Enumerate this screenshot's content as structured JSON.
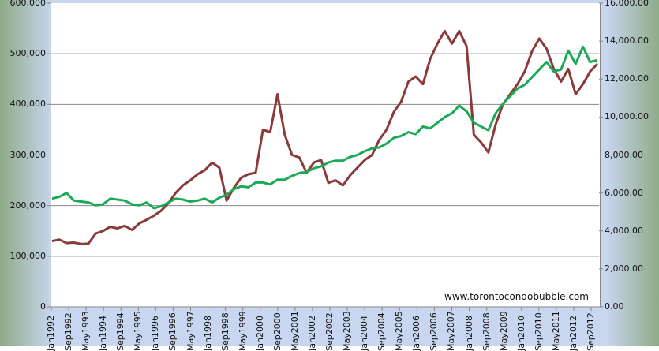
{
  "chart_data": {
    "type": "line",
    "title": "",
    "xlabel": "",
    "ylabel_left": "",
    "ylabel_right": "",
    "left_axis": {
      "min": 0,
      "max": 600000,
      "ticks": [
        "0",
        "100,000",
        "200,000",
        "300,000",
        "400,000",
        "500,000",
        "600,000"
      ]
    },
    "right_axis": {
      "min": 0,
      "max": 16000,
      "ticks": [
        "0.00",
        "2,000.00",
        "4,000.00",
        "6,000.00",
        "8,000.00",
        "10,000.00",
        "12,000.00",
        "14,000.00",
        "16,000.00"
      ]
    },
    "x_tick_labels": [
      "Jan1992",
      "Sep1992",
      "May1993",
      "Jan1994",
      "Sep1994",
      "May1995",
      "Jan1996",
      "Sep1996",
      "May1997",
      "Jan1998",
      "Sep1998",
      "May1999",
      "Jan2000",
      "Sep2000",
      "May2001",
      "Jan2002",
      "Sep2002",
      "May2003",
      "Jan2004",
      "Sep2004",
      "May2005",
      "Jan2006",
      "Sep2006",
      "May2007",
      "Jan2008",
      "Sep2008",
      "May2009",
      "Jan2010",
      "Sep2010",
      "May2011",
      "Jan2012",
      "Sep2012"
    ],
    "x_sample_interval_months": 4,
    "x_start": "Jan1992",
    "series": [
      {
        "name": "Red series (left axis)",
        "color": "#8b3a3a",
        "axis": "left",
        "values": [
          130000,
          133000,
          126000,
          127000,
          124000,
          125000,
          145000,
          150000,
          158000,
          155000,
          160000,
          152000,
          165000,
          172000,
          180000,
          190000,
          205000,
          225000,
          240000,
          250000,
          262000,
          270000,
          285000,
          275000,
          210000,
          235000,
          255000,
          262000,
          265000,
          350000,
          345000,
          420000,
          340000,
          300000,
          295000,
          265000,
          285000,
          290000,
          245000,
          250000,
          240000,
          260000,
          275000,
          290000,
          300000,
          330000,
          350000,
          385000,
          405000,
          445000,
          455000,
          440000,
          490000,
          520000,
          545000,
          520000,
          545000,
          515000,
          340000,
          325000,
          305000,
          360000,
          400000,
          420000,
          440000,
          465000,
          505000,
          530000,
          510000,
          470000,
          445000,
          470000,
          420000,
          440000,
          465000,
          480000
        ]
      },
      {
        "name": "Green series (right axis)",
        "color": "#1aaa55",
        "axis": "right",
        "values": [
          5700,
          5800,
          6000,
          5600,
          5550,
          5500,
          5350,
          5400,
          5700,
          5650,
          5600,
          5400,
          5350,
          5500,
          5200,
          5300,
          5500,
          5700,
          5650,
          5550,
          5600,
          5700,
          5500,
          5750,
          5900,
          6200,
          6350,
          6300,
          6550,
          6550,
          6450,
          6700,
          6700,
          6900,
          7050,
          7100,
          7300,
          7400,
          7600,
          7700,
          7700,
          7900,
          8000,
          8200,
          8350,
          8400,
          8600,
          8900,
          9000,
          9200,
          9100,
          9500,
          9400,
          9700,
          10000,
          10200,
          10600,
          10300,
          9700,
          9500,
          9300,
          10200,
          10700,
          11100,
          11500,
          11700,
          12100,
          12500,
          12900,
          12400,
          12500,
          13500,
          12800,
          13700,
          12900,
          13000
        ]
      }
    ],
    "annotations": [
      "www.torontocondobubble.com"
    ],
    "grid": "horizontal",
    "legend": "none"
  },
  "watermark": "www.torontocondobubble.com"
}
